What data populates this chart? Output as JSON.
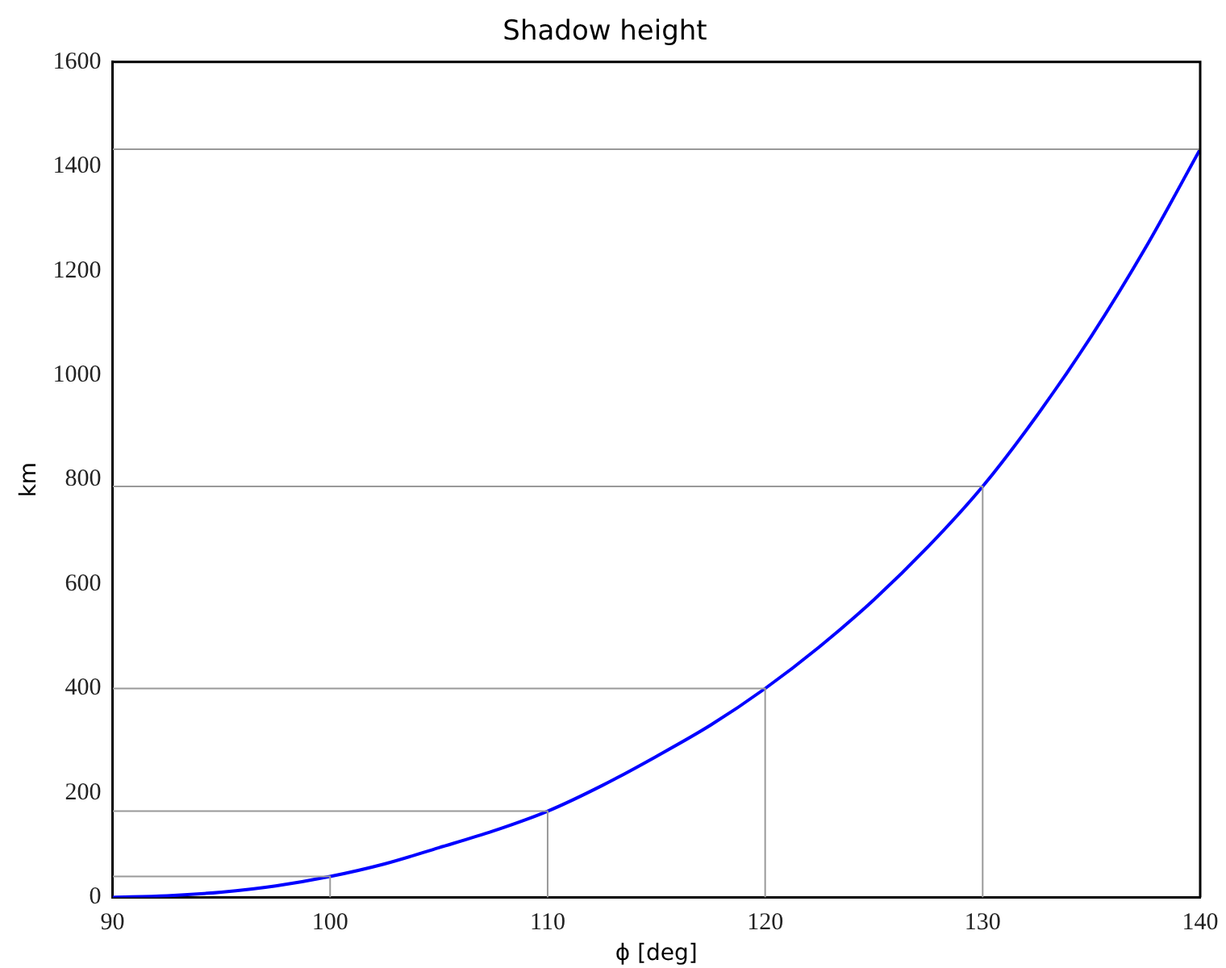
{
  "chart_data": {
    "type": "line",
    "title": "Shadow height",
    "xlabel": "ϕ [deg]",
    "ylabel": "km",
    "xlim": [
      90,
      140
    ],
    "xticks": [
      90,
      100,
      110,
      120,
      130,
      140
    ],
    "ylim": [
      0,
      1600
    ],
    "yticks": [
      0,
      200,
      400,
      600,
      800,
      1000,
      1200,
      1400,
      1600
    ],
    "grid": false,
    "legend": false,
    "marker": "none",
    "line_style": "solid",
    "series": [
      {
        "color": "#0000ff",
        "x": [
          90,
          92.5,
          95,
          97.5,
          100,
          102.5,
          105,
          107.5,
          110,
          112.5,
          115,
          117.5,
          120,
          122.5,
          125,
          127.5,
          130,
          132.5,
          135,
          137.5,
          140
        ],
        "values": [
          0,
          3,
          10,
          22,
          40,
          64,
          95,
          127,
          165,
          214,
          270,
          330,
          400,
          480,
          570,
          672,
          787,
          923,
          1075,
          1245,
          1433
        ]
      },
      {
        "color": "#999999",
        "x": [
          90,
          100,
          100
        ],
        "values": [
          40,
          40,
          0
        ]
      },
      {
        "color": "#999999",
        "x": [
          90,
          110,
          110
        ],
        "values": [
          165,
          165,
          0
        ]
      },
      {
        "color": "#999999",
        "x": [
          90,
          120,
          120
        ],
        "values": [
          400,
          400,
          0
        ]
      },
      {
        "color": "#999999",
        "x": [
          90,
          130,
          130
        ],
        "values": [
          787,
          787,
          0
        ]
      },
      {
        "color": "#999999",
        "x": [
          90,
          140
        ],
        "values": [
          1433,
          1433
        ]
      }
    ]
  }
}
